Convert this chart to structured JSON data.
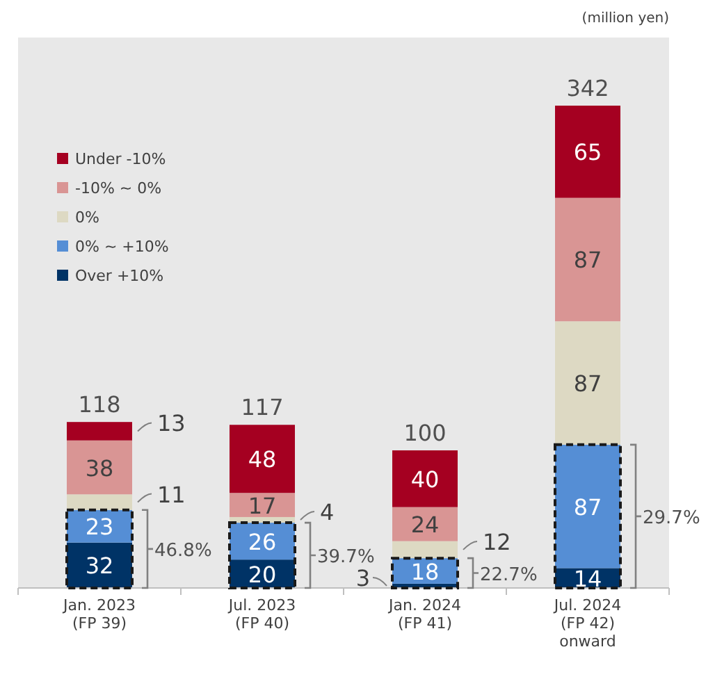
{
  "chart_data": {
    "type": "bar",
    "stacked": true,
    "legend": "top left",
    "data_labels": true,
    "categories": [
      "Jan. 2023\n(FP 39)",
      "Jul. 2023\n(FP 40)",
      "Jan. 2024\n(FP 41)",
      "Jul. 2024\n(FP 42)\nonward"
    ],
    "series": [
      {
        "name": "Over +10%",
        "color": "#003366",
        "values": [
          32,
          20,
          3,
          14
        ]
      },
      {
        "name": "0% ~ +10%",
        "color": "#558ed5",
        "values": [
          23,
          26,
          18,
          87
        ]
      },
      {
        "name": "0%",
        "color": "#ddd9c3",
        "values": [
          11,
          4,
          12,
          87
        ]
      },
      {
        "name": "-10% ~ 0%",
        "color": "#d99594",
        "values": [
          38,
          17,
          24,
          87
        ]
      },
      {
        "name": "Under -10%",
        "color": "#a50021",
        "values": [
          13,
          48,
          40,
          65
        ]
      }
    ],
    "totals": [
      "118",
      "117",
      "100",
      "342"
    ],
    "annotations": [
      "(million yen)",
      "46.8%",
      "39.7%",
      "22.7%",
      "29.7%"
    ]
  }
}
